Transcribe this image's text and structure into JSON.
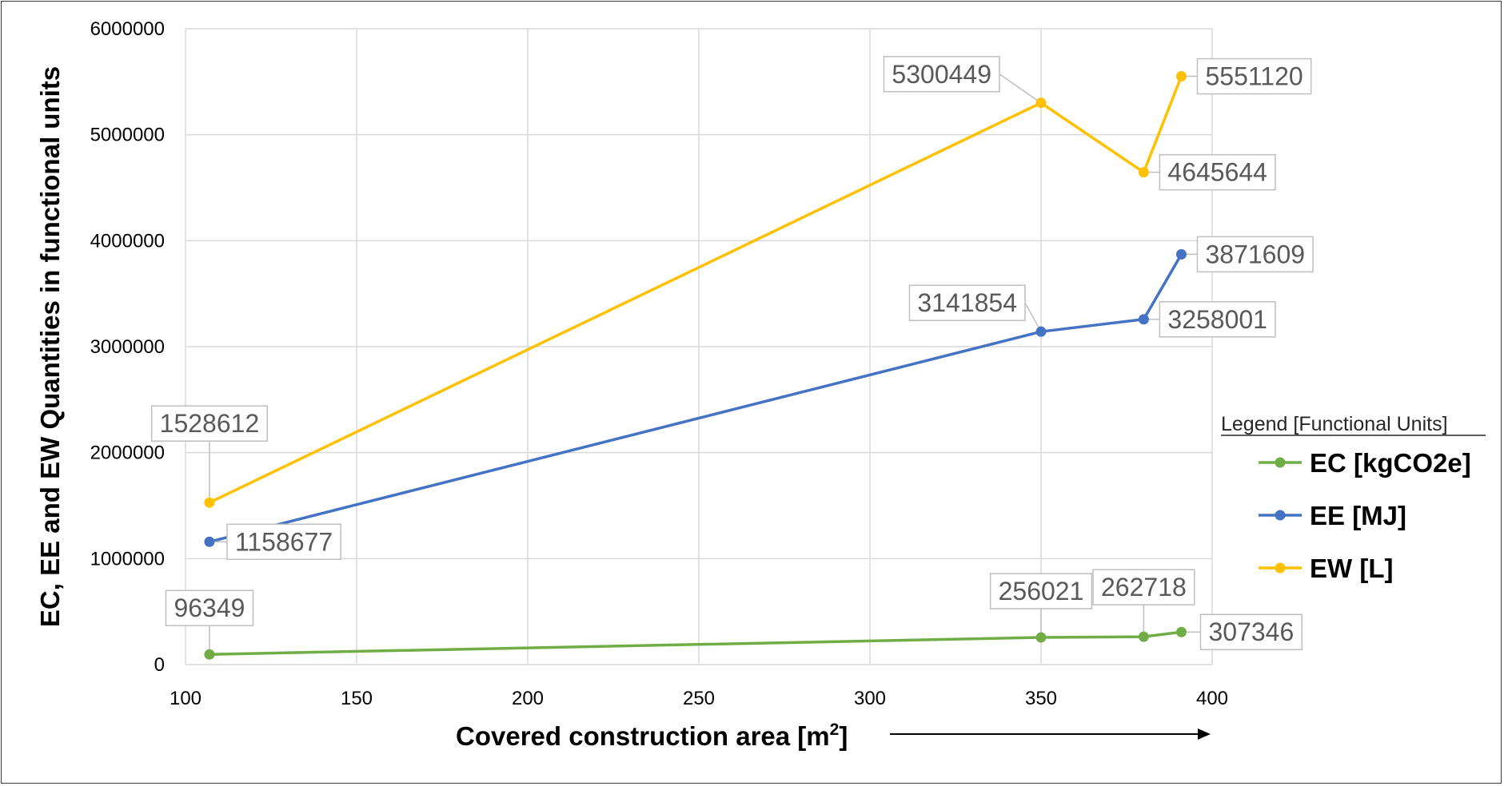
{
  "chart_data": {
    "type": "line",
    "xlabel": "Covered construction area [m",
    "xlabel_sup": "2",
    "xlabel_end": "]",
    "ylabel": "EC, EE and EW Quantities in functional units",
    "xlim": [
      100,
      400
    ],
    "ylim": [
      0,
      6000000
    ],
    "x_ticks": [
      100,
      150,
      200,
      250,
      300,
      350,
      400
    ],
    "y_ticks": [
      0,
      1000000,
      2000000,
      3000000,
      4000000,
      5000000,
      6000000
    ],
    "grid": true,
    "legend": {
      "title": "Legend [Functional Units]",
      "position": "right"
    },
    "x": [
      107,
      350,
      380,
      391
    ],
    "series": [
      {
        "name": "EC [kgCO2e]",
        "color": "#70ad47",
        "values": [
          96349,
          256021,
          262718,
          307346
        ],
        "labels": [
          "96349",
          "256021",
          "262718",
          "307346"
        ]
      },
      {
        "name": "EE [MJ]",
        "color": "#4472c4",
        "values": [
          1158677,
          3141854,
          3258001,
          3871609
        ],
        "labels": [
          "1158677",
          "3141854",
          "3258001",
          "3871609"
        ]
      },
      {
        "name": "EW [L]",
        "color": "#ffc000",
        "values": [
          1528612,
          5300449,
          4645644,
          5551120
        ],
        "labels": [
          "1528612",
          "5300449",
          "4645644",
          "5551120"
        ]
      }
    ]
  }
}
